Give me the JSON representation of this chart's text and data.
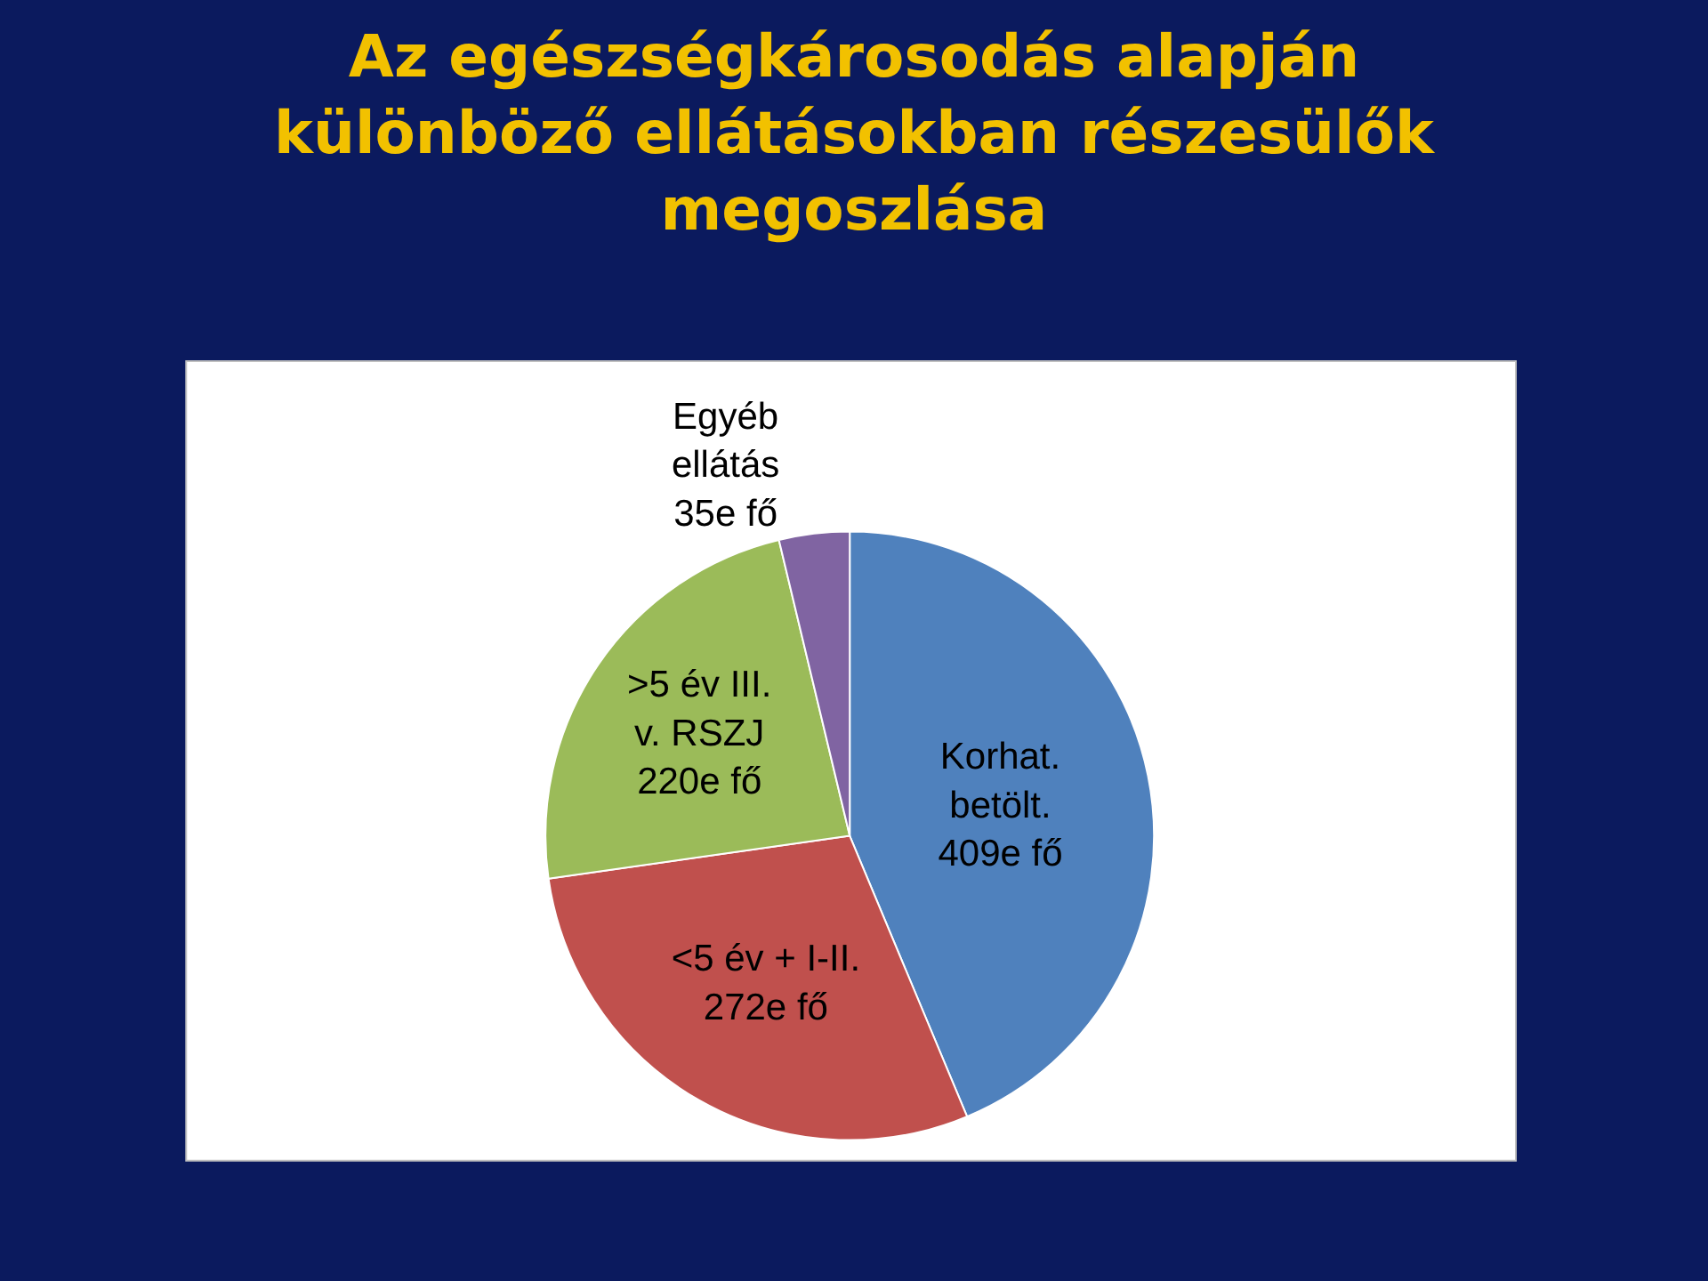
{
  "chart_data": {
    "type": "pie",
    "title": "Az egészségkárosodás alapján\nkülönböző ellátásokban részesülők\nmegoszlása",
    "categories": [
      "Korhat.\nbetölt.",
      "<5 év + I-II.",
      ">5 év III.\nv. RSZJ",
      "Egyéb\nellátás"
    ],
    "values": [
      409,
      272,
      220,
      35
    ],
    "value_labels": [
      "409e fő",
      "272e fő",
      "220e fő",
      "35e fő"
    ],
    "colors": [
      "#4f81bd",
      "#c0504d",
      "#9bbb59",
      "#8064a2"
    ],
    "legend": false
  }
}
